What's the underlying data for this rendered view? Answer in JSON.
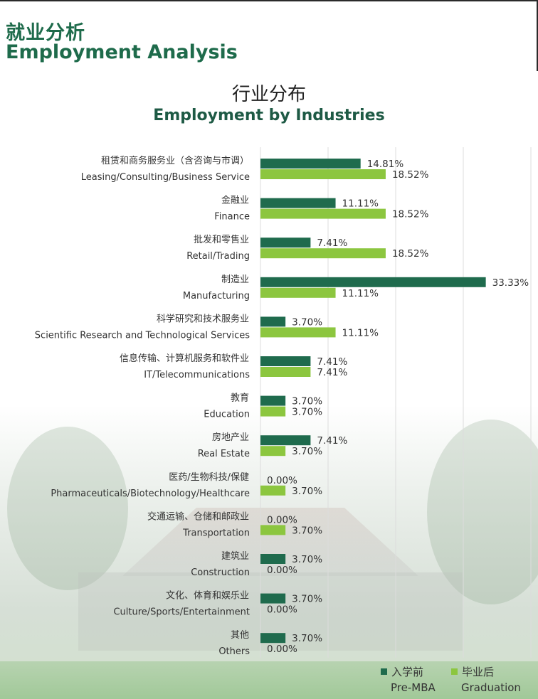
{
  "header": {
    "title_cn": "就业分析",
    "title_en": "Employment Analysis"
  },
  "chart_data": {
    "type": "bar",
    "orientation": "horizontal",
    "title": "行业分布",
    "subtitle": "Employment by Industries",
    "categories_cn": [
      "租赁和商务服务业（含咨询与市调）",
      "金融业",
      "批发和零售业",
      "制造业",
      "科学研究和技术服务业",
      "信息传输、计算机服务和软件业",
      "教育",
      "房地产业",
      "医药/生物科技/保健",
      "交通运输、仓储和邮政业",
      "建筑业",
      "文化、体育和娱乐业",
      "其他"
    ],
    "categories": [
      "Leasing/Consulting/Business Service",
      "Finance",
      "Retail/Trading",
      "Manufacturing",
      "Scientific Research and Technological Services",
      "IT/Telecommunications",
      "Education",
      "Real Estate",
      "Pharmaceuticals/Biotechnology/Healthcare",
      "Transportation",
      "Construction",
      "Culture/Sports/Entertainment",
      "Others"
    ],
    "series": [
      {
        "name_cn": "入学前",
        "name": "Pre-MBA",
        "color": "#1f6b4d",
        "values": [
          14.81,
          11.11,
          7.41,
          33.33,
          3.7,
          7.41,
          3.7,
          7.41,
          0.0,
          0.0,
          3.7,
          3.7,
          3.7
        ],
        "labels": [
          "14.81%",
          "11.11%",
          "7.41%",
          "33.33%",
          "3.70%",
          "7.41%",
          "3.70%",
          "7.41%",
          "0.00%",
          "0.00%",
          "3.70%",
          "3.70%",
          "3.70%"
        ]
      },
      {
        "name_cn": "毕业后",
        "name": "Graduation",
        "color": "#8cc63f",
        "values": [
          18.52,
          18.52,
          18.52,
          11.11,
          11.11,
          7.41,
          3.7,
          3.7,
          3.7,
          3.7,
          0.0,
          0.0,
          0.0
        ],
        "labels": [
          "18.52%",
          "18.52%",
          "18.52%",
          "11.11%",
          "11.11%",
          "7.41%",
          "3.70%",
          "3.70%",
          "3.70%",
          "3.70%",
          "0.00%",
          "0.00%",
          "0.00%"
        ]
      }
    ],
    "xlim": [
      0,
      40
    ],
    "grid": true,
    "legend": "bottom-right"
  }
}
